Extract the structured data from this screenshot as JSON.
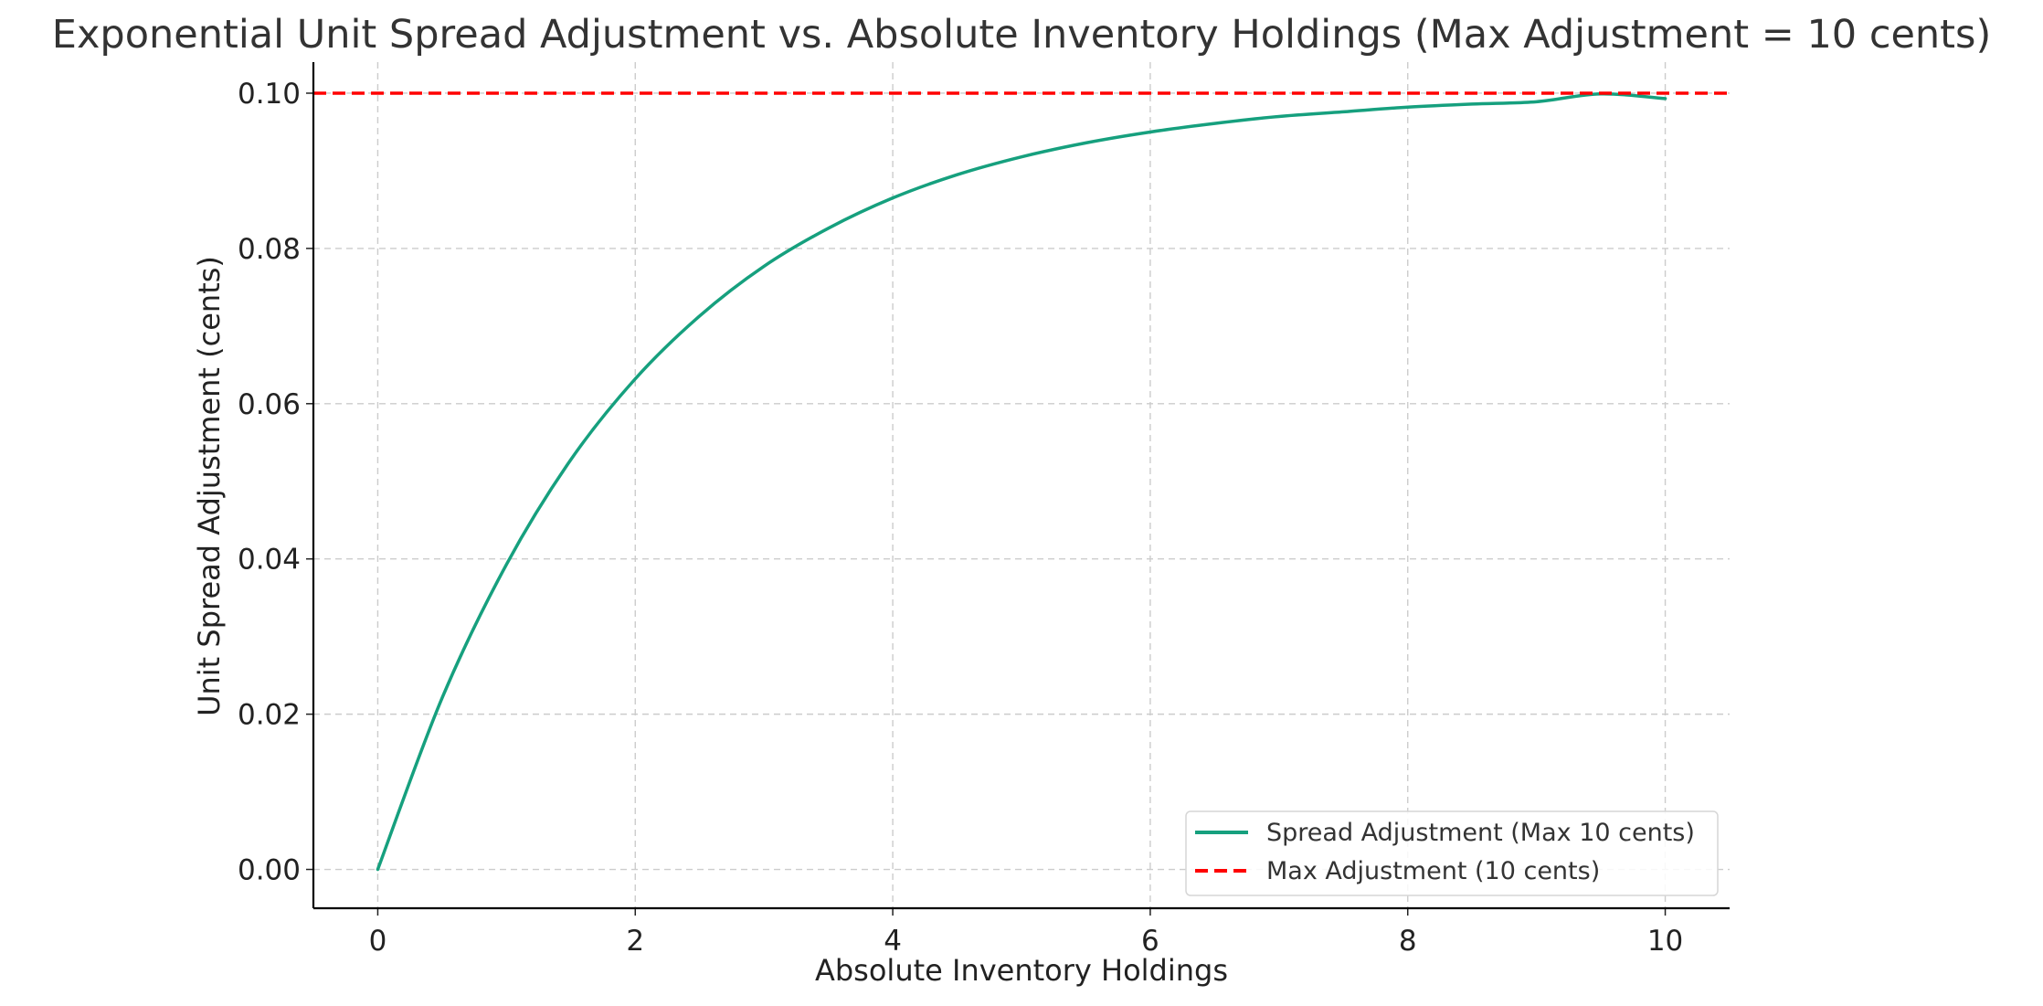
{
  "chart_data": {
    "type": "line",
    "title": "Exponential Unit Spread Adjustment vs. Absolute Inventory Holdings (Max Adjustment = 10 cents)",
    "xlabel": "Absolute Inventory Holdings",
    "ylabel": "Unit Spread Adjustment (cents)",
    "xlim": [
      -0.5,
      10.5
    ],
    "ylim": [
      -0.005,
      0.104
    ],
    "xticks": [
      0,
      2,
      4,
      6,
      8,
      10
    ],
    "xtick_labels": [
      "0",
      "2",
      "4",
      "6",
      "8",
      "10"
    ],
    "yticks": [
      0.0,
      0.02,
      0.04,
      0.06,
      0.08,
      0.1
    ],
    "ytick_labels": [
      "0.00",
      "0.02",
      "0.04",
      "0.06",
      "0.08",
      "0.10"
    ],
    "grid": true,
    "legend_position": "lower-right",
    "series": [
      {
        "name": "Spread Adjustment (Max 10 cents)",
        "style": "solid",
        "color": "#16a07e",
        "x": [
          0,
          0.5,
          1,
          1.5,
          2,
          2.5,
          3,
          3.5,
          4,
          4.5,
          5,
          5.5,
          6,
          6.5,
          7,
          7.5,
          8,
          8.5,
          9,
          9.5,
          10
        ],
        "y": [
          0.0,
          0.0221,
          0.0393,
          0.0528,
          0.0632,
          0.0713,
          0.0777,
          0.0826,
          0.0865,
          0.0895,
          0.0918,
          0.0936,
          0.095,
          0.0961,
          0.097,
          0.0976,
          0.0982,
          0.0986,
          0.0989,
          0.09991,
          0.0993
        ]
      },
      {
        "name": "Max Adjustment (10 cents)",
        "style": "dashed",
        "color": "#ff0000",
        "y_constant": 0.1
      }
    ]
  }
}
